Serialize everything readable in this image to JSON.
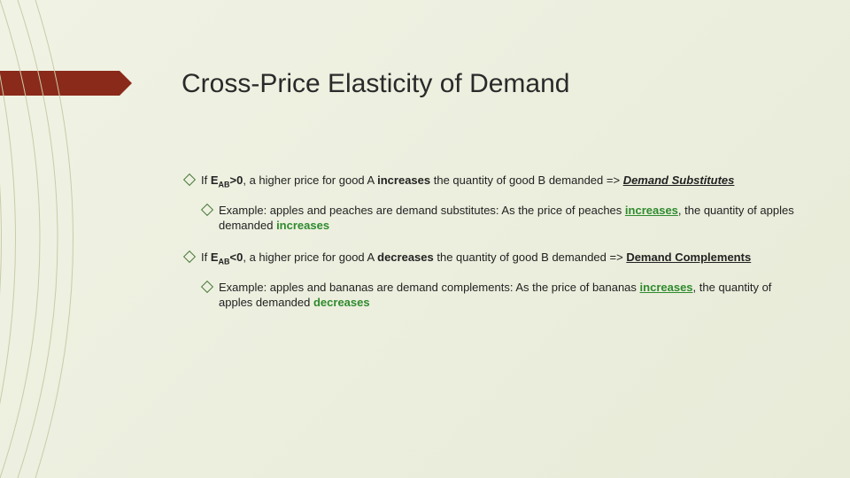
{
  "slide": {
    "title": "Cross-Price Elasticity of Demand",
    "background_gradient": [
      "#f0f2e4",
      "#e8ebd8"
    ],
    "accent_bar_color": "#8a2a1a",
    "bullet_border_color": "#4a7a3a",
    "highlight_color": "#2e8b2e",
    "title_fontsize": 30,
    "body_fontsize": 13,
    "bullets": [
      {
        "level": 1,
        "parts": [
          {
            "t": "If "
          },
          {
            "t": "E",
            "bold": true
          },
          {
            "t": "AB",
            "sub": true,
            "bold": true
          },
          {
            "t": ">0",
            "bold": true
          },
          {
            "t": ",  a higher price for good A "
          },
          {
            "t": "increases",
            "bold": true
          },
          {
            "t": " the quantity of good B demanded => "
          },
          {
            "t": "Demand Substitutes",
            "bold": true,
            "underline_italic": true
          }
        ]
      },
      {
        "level": 2,
        "parts": [
          {
            "t": "Example: apples and peaches are demand substitutes: As the price of peaches "
          },
          {
            "t": "increases",
            "highlight": true,
            "underline": true
          },
          {
            "t": ", the quantity of apples demanded "
          },
          {
            "t": "increases",
            "highlight": true
          }
        ]
      },
      {
        "level": 1,
        "parts": [
          {
            "t": "If "
          },
          {
            "t": "E",
            "bold": true
          },
          {
            "t": "AB",
            "sub": true,
            "bold": true
          },
          {
            "t": "<0",
            "bold": true
          },
          {
            "t": ", a higher price for good A "
          },
          {
            "t": "decreases",
            "bold": true
          },
          {
            "t": " the quantity of good B demanded => "
          },
          {
            "t": "Demand Complements",
            "bold": true,
            "underline": true
          }
        ]
      },
      {
        "level": 2,
        "parts": [
          {
            "t": "Example:  apples and bananas are demand complements: As the price of bananas "
          },
          {
            "t": "increases",
            "highlight": true,
            "underline": true
          },
          {
            "t": ", the quantity of apples demanded "
          },
          {
            "t": "decreases",
            "highlight": true
          }
        ]
      }
    ]
  }
}
